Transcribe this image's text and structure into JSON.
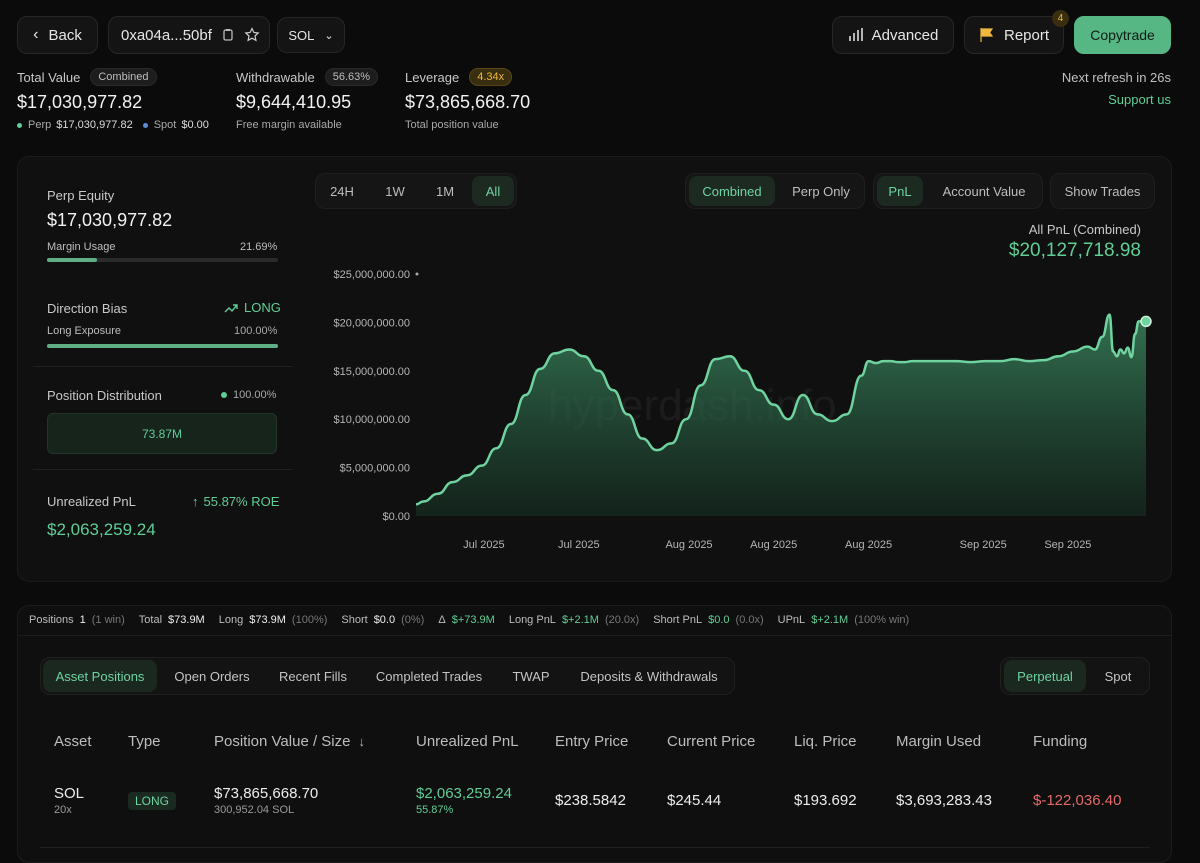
{
  "header": {
    "back_label": "Back",
    "address": "0xa04a...50bf",
    "token_select": "SOL",
    "advanced_label": "Advanced",
    "report_label": "Report",
    "report_badge": "4",
    "copytrade_label": "Copytrade",
    "refresh_text": "Next refresh in 26s",
    "support_link": "Support us"
  },
  "summary": {
    "total_value_label": "Total Value",
    "total_value_pill": "Combined",
    "total_value": "$17,030,977.82",
    "perp_label": "Perp",
    "perp_value": "$17,030,977.82",
    "spot_label": "Spot",
    "spot_value": "$0.00",
    "withdrawable_label": "Withdrawable",
    "withdrawable_pill": "56.63%",
    "withdrawable_value": "$9,644,410.95",
    "withdrawable_sub": "Free margin available",
    "leverage_label": "Leverage",
    "leverage_pill": "4.34x",
    "leverage_value": "$73,865,668.70",
    "leverage_sub": "Total position value"
  },
  "left_panel": {
    "perp_equity_label": "Perp Equity",
    "perp_equity_value": "$17,030,977.82",
    "margin_usage_label": "Margin Usage",
    "margin_usage_value": "21.69%",
    "margin_usage_fraction": 0.2169,
    "direction_bias_label": "Direction Bias",
    "direction_bias_value": "LONG",
    "long_exposure_label": "Long Exposure",
    "long_exposure_value": "100.00%",
    "long_exposure_fraction": 1.0,
    "position_dist_label": "Position Distribution",
    "position_dist_value": "100.00%",
    "position_dist_box": "73.87M",
    "unrealized_label": "Unrealized PnL",
    "unrealized_roe": "55.87% ROE",
    "unrealized_value": "$2,063,259.24"
  },
  "chart_controls": {
    "ranges": [
      "24H",
      "1W",
      "1M",
      "All"
    ],
    "active_range": "All",
    "mode_combined": "Combined",
    "mode_perp": "Perp Only",
    "metric_pnl": "PnL",
    "metric_account": "Account Value",
    "show_trades": "Show Trades",
    "pnl_title": "All PnL (Combined)",
    "pnl_value": "$20,127,718.98",
    "watermark": "hyperdash.info"
  },
  "chart_data": {
    "type": "area",
    "title": "All PnL (Combined)",
    "xlabel": "",
    "ylabel": "",
    "ylim": [
      0,
      25000000
    ],
    "yticks": [
      "$0.00",
      "$5,000,000.00",
      "$10,000,000.00",
      "$15,000,000.00",
      "$20,000,000.00",
      "$25,000,000.00"
    ],
    "xticks": [
      "Jul 2025",
      "Jul 2025",
      "Aug 2025",
      "Aug 2025",
      "Aug 2025",
      "Sep 2025",
      "Sep 2025"
    ],
    "series": [
      {
        "name": "PnL",
        "color": "#6fd3a0",
        "x": [
          0,
          0.01,
          0.03,
          0.05,
          0.07,
          0.09,
          0.11,
          0.13,
          0.15,
          0.17,
          0.19,
          0.21,
          0.23,
          0.25,
          0.27,
          0.29,
          0.31,
          0.33,
          0.35,
          0.37,
          0.39,
          0.41,
          0.43,
          0.45,
          0.47,
          0.49,
          0.51,
          0.53,
          0.55,
          0.57,
          0.59,
          0.61,
          0.62,
          0.63,
          0.64,
          0.65,
          0.66,
          0.67,
          0.68,
          0.69,
          0.7,
          0.72,
          0.74,
          0.76,
          0.78,
          0.8,
          0.82,
          0.84,
          0.86,
          0.88,
          0.9,
          0.92,
          0.93,
          0.94,
          0.95,
          0.955,
          0.96,
          0.965,
          0.97,
          0.975,
          0.98,
          0.985,
          0.99,
          1.0
        ],
        "values": [
          1200000,
          1500000,
          2300000,
          3500000,
          4200000,
          5200000,
          7000000,
          9500000,
          12500000,
          15200000,
          16800000,
          17200000,
          16500000,
          15000000,
          13000000,
          10500000,
          8000000,
          6800000,
          7500000,
          10000000,
          13500000,
          16200000,
          16500000,
          15000000,
          13000000,
          11500000,
          10000000,
          12500000,
          10500000,
          9800000,
          10500000,
          14500000,
          16000000,
          15800000,
          16000000,
          16000000,
          15900000,
          15900000,
          16000000,
          16000000,
          16000000,
          16000000,
          16000000,
          15900000,
          16000000,
          16000000,
          16200000,
          16000000,
          16100000,
          16500000,
          17000000,
          17500000,
          17200000,
          18500000,
          20800000,
          17000000,
          16500000,
          17200000,
          16800000,
          17400000,
          16400000,
          18800000,
          20100000,
          20100000
        ]
      }
    ]
  },
  "summary_bar": {
    "positions_label": "Positions",
    "positions_count": "1",
    "positions_win": "(1 win)",
    "total_label": "Total",
    "total_value": "$73.9M",
    "long_label": "Long",
    "long_value": "$73.9M",
    "long_pct": "(100%)",
    "short_label": "Short",
    "short_value": "$0.0",
    "short_pct": "(0%)",
    "delta_label": "Δ",
    "delta_value": "$+73.9M",
    "long_pnl_label": "Long PnL",
    "long_pnl_value": "$+2.1M",
    "long_pnl_lev": "(20.0x)",
    "short_pnl_label": "Short PnL",
    "short_pnl_value": "$0.0",
    "short_pnl_lev": "(0.0x)",
    "upnl_label": "UPnL",
    "upnl_value": "$+2.1M",
    "upnl_pct": "(100% win)"
  },
  "tabs": [
    "Asset Positions",
    "Open Orders",
    "Recent Fills",
    "Completed Trades",
    "TWAP",
    "Deposits & Withdrawals"
  ],
  "tab_right": [
    "Perpetual",
    "Spot"
  ],
  "table": {
    "headers": [
      "Asset",
      "Type",
      "Position Value / Size",
      "Unrealized PnL",
      "Entry Price",
      "Current Price",
      "Liq. Price",
      "Margin Used",
      "Funding"
    ],
    "row": {
      "asset": "SOL",
      "leverage": "20x",
      "type": "LONG",
      "position_value": "$73,865,668.70",
      "position_size": "300,952.04 SOL",
      "upnl": "$2,063,259.24",
      "upnl_pct": "55.87%",
      "entry": "$238.5842",
      "current": "$245.44",
      "liq": "$193.692",
      "margin": "$3,693,283.43",
      "funding": "$-122,036.40"
    }
  }
}
